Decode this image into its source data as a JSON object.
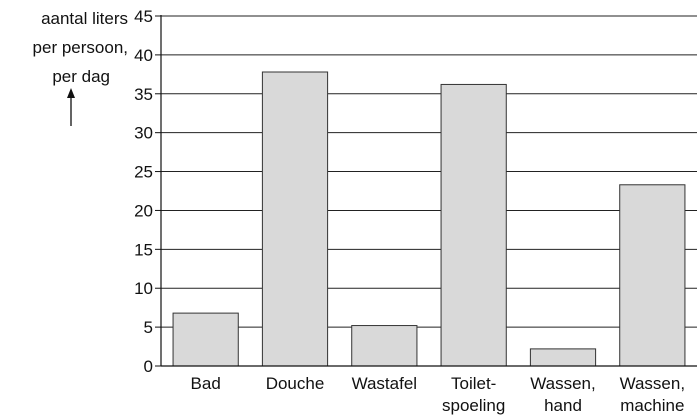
{
  "chart_data": {
    "type": "bar",
    "ylabel": [
      "aantal liters",
      "per persoon,",
      "per dag"
    ],
    "xlabel": "",
    "ylim": [
      0,
      45
    ],
    "yticks": [
      0,
      5,
      10,
      15,
      20,
      25,
      30,
      35,
      40,
      45
    ],
    "grid": true,
    "categories": [
      [
        "Bad"
      ],
      [
        "Douche"
      ],
      [
        "Wastafel"
      ],
      [
        "Toilet-",
        "spoeling"
      ],
      [
        "Wassen,",
        "hand"
      ],
      [
        "Wassen,",
        "machine"
      ]
    ],
    "values": [
      6.8,
      37.8,
      5.2,
      36.2,
      2.2,
      23.3
    ],
    "colors": {
      "bar_fill": "#d9d9d9",
      "bar_stroke": "#333333",
      "grid": "#222222",
      "axis": "#111111"
    }
  }
}
